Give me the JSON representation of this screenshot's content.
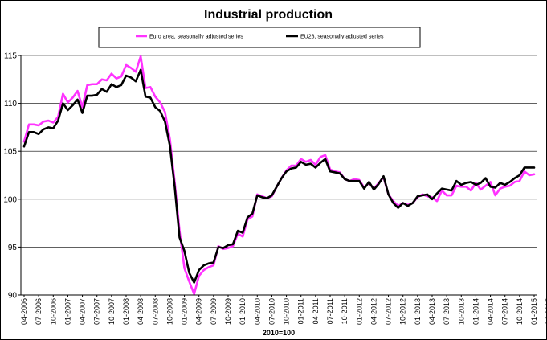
{
  "chart_data": {
    "type": "line",
    "title": "Industrial production",
    "xlabel": "2010=100",
    "ylabel": "",
    "ylim": [
      90,
      115
    ],
    "yticks": [
      90,
      95,
      100,
      105,
      110,
      115
    ],
    "grid": "horizontal",
    "legend_position": "top",
    "x_tick_labels": [
      "04-2006",
      "07-2006",
      "10-2006",
      "01-2007",
      "04-2007",
      "07-2007",
      "10-2007",
      "01-2008",
      "04-2008",
      "07-2008",
      "10-2008",
      "01-2009",
      "04-2009",
      "07-2009",
      "10-2009",
      "01-2010",
      "04-2010",
      "07-2010",
      "10-2010",
      "01-2011",
      "04-2011",
      "07-2011",
      "10-2011",
      "01-2012",
      "04-2012",
      "07-2012",
      "10-2012",
      "01-2013",
      "04-2013",
      "07-2013",
      "10-2013",
      "01-2014",
      "04-2014",
      "07-2014",
      "10-2014",
      "01-2015",
      "04-2015"
    ],
    "series": [
      {
        "name": "Euro area, seasonally adjusted series",
        "color": "#ff33ff",
        "values": [
          106.0,
          107.8,
          107.8,
          107.7,
          108.1,
          108.2,
          108.0,
          108.6,
          111.0,
          110.1,
          110.6,
          111.3,
          109.6,
          111.9,
          112.0,
          112.0,
          112.5,
          112.4,
          113.1,
          112.6,
          112.8,
          114.0,
          113.7,
          113.3,
          114.9,
          111.6,
          111.7,
          110.7,
          110.1,
          109.1,
          106.3,
          101.8,
          96.7,
          92.8,
          91.4,
          90.1,
          92.0,
          92.6,
          92.9,
          93.1,
          95.1,
          94.8,
          94.9,
          95.1,
          96.4,
          96.1,
          97.9,
          98.2,
          100.5,
          100.3,
          100.1,
          100.3,
          101.3,
          102.2,
          103.0,
          103.5,
          103.5,
          104.2,
          103.9,
          104.1,
          103.6,
          104.4,
          104.6,
          103.1,
          102.9,
          102.8,
          102.1,
          101.9,
          102.1,
          102.0,
          101.2,
          101.7,
          101.1,
          101.7,
          102.3,
          100.5,
          99.8,
          99.3,
          99.6,
          99.4,
          99.6,
          100.2,
          100.5,
          100.3,
          100.2,
          99.8,
          100.9,
          100.4,
          100.4,
          101.4,
          101.3,
          101.3,
          100.9,
          101.7,
          101.0,
          101.4,
          101.8,
          100.4,
          101.1,
          101.3,
          101.4,
          101.8,
          101.9,
          102.9,
          102.5,
          102.6
        ]
      },
      {
        "name": "EU28, seasonally adjusted series",
        "color": "#000000",
        "values": [
          105.5,
          107.0,
          107.0,
          106.8,
          107.3,
          107.5,
          107.4,
          108.2,
          110.0,
          109.3,
          109.8,
          110.4,
          109.0,
          110.8,
          110.8,
          110.9,
          111.5,
          111.2,
          112.0,
          111.7,
          111.9,
          112.9,
          112.7,
          112.3,
          113.5,
          110.7,
          110.6,
          109.6,
          109.2,
          108.1,
          105.6,
          101.3,
          96.0,
          94.6,
          92.3,
          91.3,
          92.6,
          93.1,
          93.3,
          93.4,
          95.0,
          94.9,
          95.2,
          95.3,
          96.7,
          96.5,
          98.1,
          98.5,
          100.4,
          100.2,
          100.1,
          100.4,
          101.3,
          102.2,
          102.9,
          103.2,
          103.3,
          103.9,
          103.6,
          103.7,
          103.3,
          103.8,
          104.2,
          102.9,
          102.8,
          102.7,
          102.1,
          101.9,
          101.9,
          101.9,
          101.1,
          101.8,
          101.0,
          101.6,
          102.4,
          100.5,
          99.6,
          99.1,
          99.6,
          99.3,
          99.6,
          100.3,
          100.4,
          100.5,
          100.0,
          100.6,
          101.1,
          101.0,
          100.9,
          101.9,
          101.5,
          101.7,
          101.8,
          101.5,
          101.7,
          102.2,
          101.3,
          101.2,
          101.7,
          101.5,
          101.8,
          102.2,
          102.5,
          103.3,
          103.3,
          103.3
        ]
      }
    ]
  }
}
